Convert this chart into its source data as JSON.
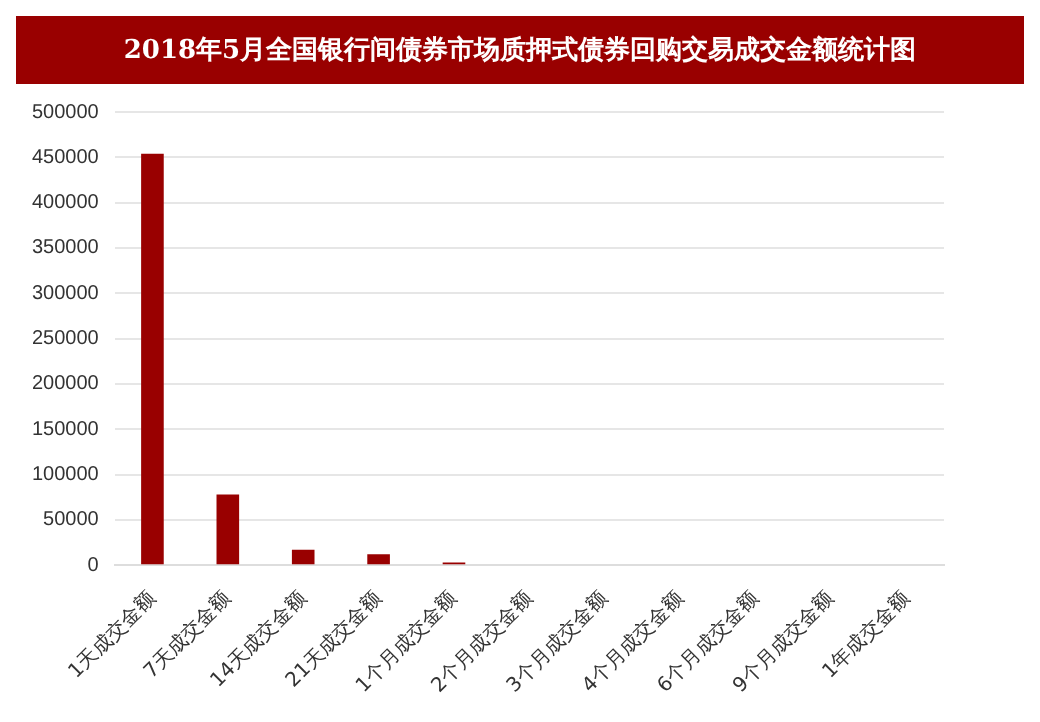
{
  "chart_data": {
    "type": "bar",
    "title": "2018年5月全国银行间债券市场质押式债券回购交易成交金额统计图",
    "categories": [
      "1天成交金额",
      "7天成交金额",
      "14天成交金额",
      "21天成交金额",
      "1个月成交金额",
      "2个月成交金额",
      "3个月成交金额",
      "4个月成交金额",
      "6个月成交金额",
      "9个月成交金额",
      "1年成交金额"
    ],
    "values": [
      454000,
      78000,
      17000,
      12000,
      3000,
      1000,
      1000,
      1000,
      1000,
      1000,
      1000
    ],
    "color": "#990000",
    "ylim": [
      0,
      500000
    ],
    "yticks": [
      0,
      50000,
      100000,
      150000,
      200000,
      250000,
      300000,
      350000,
      400000,
      450000,
      500000
    ],
    "grid": "y"
  }
}
